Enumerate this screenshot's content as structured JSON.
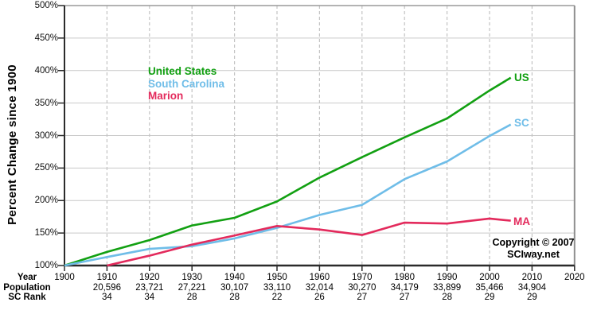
{
  "y_axis": {
    "title": "Percent Change since 1900",
    "ticks": [
      "500%",
      "450%",
      "400%",
      "350%",
      "300%",
      "250%",
      "200%",
      "150%",
      "100%"
    ]
  },
  "legend": {
    "items": [
      {
        "id": "us",
        "label": "United States"
      },
      {
        "id": "sc",
        "label": "South Carolina"
      },
      {
        "id": "marion",
        "label": "Marion"
      }
    ]
  },
  "line_labels": {
    "us": "US",
    "sc": "SC",
    "marion": "MA"
  },
  "colors": {
    "us": "#12A012",
    "sc": "#6FBDE8",
    "marion": "#E32A5C",
    "axis": "#2b2b2b",
    "border": "#8f8f8f",
    "hgrid": "#c9c9c9",
    "vgrid": "#c3c3c3"
  },
  "chart_data": {
    "type": "line",
    "title": "",
    "ylabel": "Percent Change since 1900",
    "ylim": [
      100,
      500
    ],
    "ytick_step": 50,
    "xlim": [
      1900,
      2020
    ],
    "xtick_step": 10,
    "grid": true,
    "legend_position": "top-left-inside",
    "series": [
      {
        "id": "us",
        "name": "United States",
        "end_label": "US",
        "color": "#12A012",
        "x": [
          1900,
          1910,
          1920,
          1930,
          1940,
          1950,
          1960,
          1970,
          1980,
          1990,
          2000,
          2005
        ],
        "values": [
          100,
          121.0,
          139.1,
          161.6,
          173.4,
          198.6,
          235.3,
          266.7,
          297.2,
          326.3,
          369.3,
          389
        ]
      },
      {
        "id": "sc",
        "name": "South Carolina",
        "end_label": "SC",
        "color": "#6FBDE8",
        "x": [
          1900,
          1910,
          1920,
          1930,
          1940,
          1950,
          1960,
          1970,
          1980,
          1990,
          2000,
          2005
        ],
        "values": [
          100,
          113.1,
          125.6,
          129.7,
          141.7,
          157.9,
          177.8,
          193.3,
          232.9,
          260.1,
          299.3,
          317
        ]
      },
      {
        "id": "marion",
        "name": "Marion",
        "end_label": "MA",
        "color": "#E32A5C",
        "x": [
          1910,
          1920,
          1930,
          1940,
          1950,
          1960,
          1970,
          1980,
          1990,
          2000,
          2005
        ],
        "values": [
          100,
          115.2,
          132.2,
          146.2,
          160.8,
          155.4,
          147.0,
          166.0,
          164.6,
          172.2,
          169
        ]
      }
    ]
  },
  "table": {
    "row_labels": [
      "Year",
      "Population",
      "SC Rank"
    ],
    "columns": [
      {
        "year": "1900",
        "population": "",
        "rank": ""
      },
      {
        "year": "1910",
        "population": "20,596",
        "rank": "34"
      },
      {
        "year": "1920",
        "population": "23,721",
        "rank": "34"
      },
      {
        "year": "1930",
        "population": "27,221",
        "rank": "28"
      },
      {
        "year": "1940",
        "population": "30,107",
        "rank": "28"
      },
      {
        "year": "1950",
        "population": "33,110",
        "rank": "22"
      },
      {
        "year": "1960",
        "population": "32,014",
        "rank": "26"
      },
      {
        "year": "1970",
        "population": "30,270",
        "rank": "27"
      },
      {
        "year": "1980",
        "population": "34,179",
        "rank": "27"
      },
      {
        "year": "1990",
        "population": "33,899",
        "rank": "28"
      },
      {
        "year": "2000",
        "population": "35,466",
        "rank": "29"
      },
      {
        "year": "2010",
        "population": "34,904",
        "rank": "29"
      },
      {
        "year": "2020",
        "population": "",
        "rank": ""
      }
    ]
  },
  "footer": {
    "line1": "Copyright © 2007",
    "line2": "SCIway.net"
  }
}
